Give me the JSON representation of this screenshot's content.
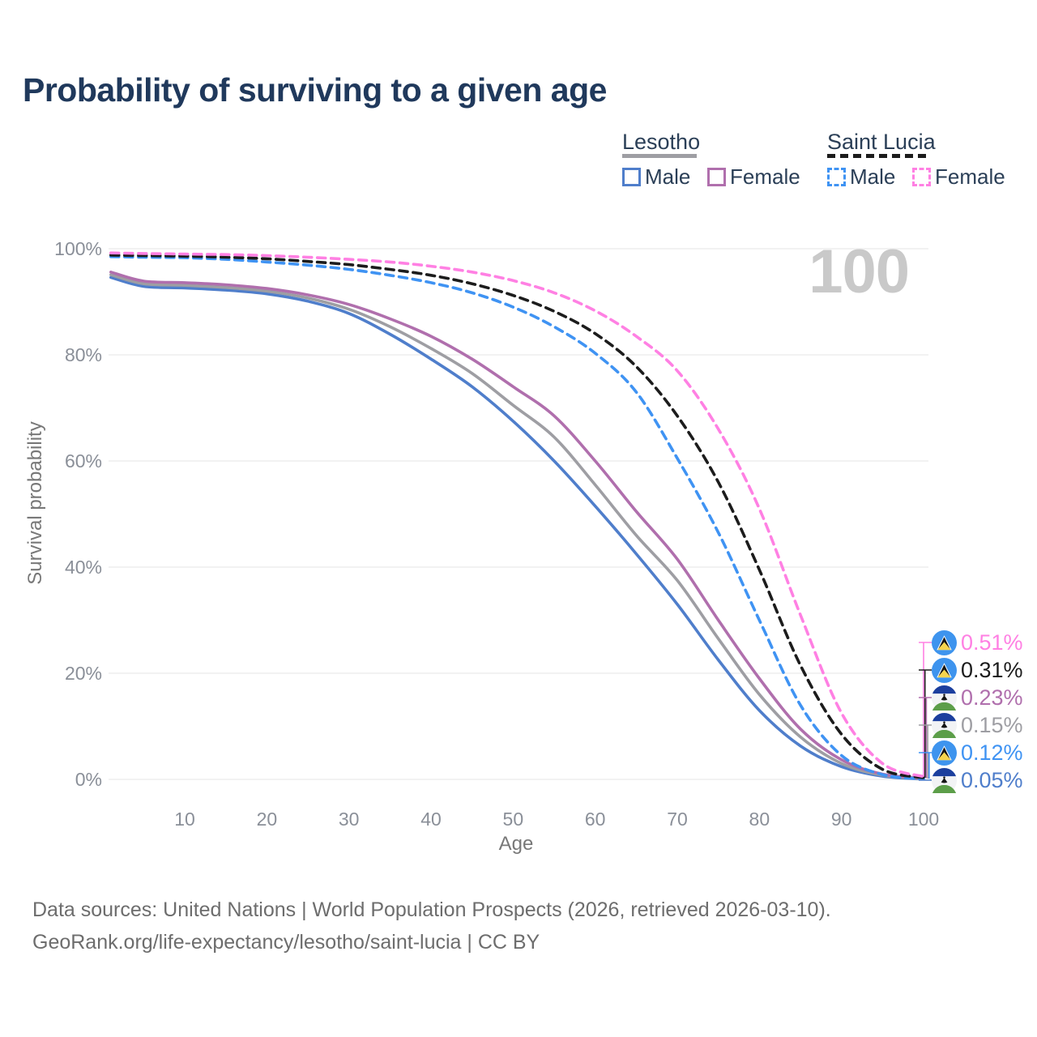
{
  "title": "Probability of surviving to a given age",
  "watermark": "100",
  "legend": {
    "groups": [
      {
        "label": "Lesotho",
        "line_style": "solid",
        "line_color": "#9e9ea3",
        "items": [
          {
            "label": "Male",
            "color": "#4f7ecb",
            "dashed": false
          },
          {
            "label": "Female",
            "color": "#b06fad",
            "dashed": false
          }
        ]
      },
      {
        "label": "Saint Lucia",
        "line_style": "dashed",
        "line_color": "#1c1c1c",
        "items": [
          {
            "label": "Male",
            "color": "#3f93f3",
            "dashed": true
          },
          {
            "label": "Female",
            "color": "#ff80e3",
            "dashed": true
          }
        ]
      }
    ]
  },
  "chart_data": {
    "type": "line",
    "title": "Probability of surviving to a given age",
    "xlabel": "Age",
    "ylabel": "Survival probability",
    "xlim": [
      1,
      100
    ],
    "ylim": [
      0,
      100
    ],
    "x_ticks": [
      10,
      20,
      30,
      40,
      50,
      60,
      70,
      80,
      90,
      100
    ],
    "y_ticks": [
      0,
      20,
      40,
      60,
      80,
      100
    ],
    "y_tick_suffix": "%",
    "grid": "horizontal",
    "gridline_color": "#e9e9e9",
    "legend_position": "top-right",
    "age_marker_value": "100",
    "x": [
      1,
      5,
      10,
      15,
      20,
      25,
      30,
      35,
      40,
      45,
      50,
      55,
      60,
      65,
      70,
      75,
      80,
      85,
      90,
      95,
      100
    ],
    "series": [
      {
        "name": "Lesotho Male",
        "country": "Lesotho",
        "sex": "Male",
        "color": "#4f7ecb",
        "dash": false,
        "end_label": "0.05%",
        "values": [
          94.6,
          92.9,
          92.6,
          92.2,
          91.5,
          90.1,
          87.8,
          83.9,
          79.2,
          74.0,
          67.5,
          60.0,
          51.5,
          42.5,
          33.0,
          22.5,
          13.0,
          6.3,
          2.4,
          0.6,
          0.05
        ]
      },
      {
        "name": "Lesotho Both sexes",
        "country": "Lesotho",
        "sex": "Both",
        "color": "#9e9ea3",
        "dash": false,
        "end_label": "0.15%",
        "values": [
          95.1,
          93.4,
          93.1,
          92.7,
          92.0,
          90.7,
          88.6,
          85.3,
          81.2,
          76.5,
          70.5,
          64.5,
          55.5,
          46.0,
          37.5,
          26.5,
          16.0,
          8.0,
          3.0,
          0.8,
          0.15
        ]
      },
      {
        "name": "Lesotho Female",
        "country": "Lesotho",
        "sex": "Female",
        "color": "#b06fad",
        "dash": false,
        "end_label": "0.23%",
        "values": [
          95.6,
          93.9,
          93.6,
          93.2,
          92.5,
          91.3,
          89.5,
          86.8,
          83.5,
          79.2,
          74.0,
          68.5,
          60.0,
          50.5,
          41.5,
          30.0,
          19.0,
          9.5,
          3.7,
          1.0,
          0.23
        ]
      },
      {
        "name": "Saint Lucia Male",
        "country": "Saint Lucia",
        "sex": "Male",
        "color": "#3f93f3",
        "dash": true,
        "end_label": "0.12%",
        "values": [
          98.5,
          98.4,
          98.3,
          98.0,
          97.5,
          96.9,
          96.1,
          95.0,
          93.6,
          91.7,
          89.0,
          85.3,
          80.3,
          73.0,
          60.5,
          46.5,
          30.0,
          14.0,
          4.5,
          0.9,
          0.12
        ]
      },
      {
        "name": "Saint Lucia Both sexes",
        "country": "Saint Lucia",
        "sex": "Both",
        "color": "#1c1c1c",
        "dash": true,
        "end_label": "0.31%",
        "values": [
          98.8,
          98.7,
          98.6,
          98.4,
          98.1,
          97.6,
          97.0,
          96.1,
          95.0,
          93.4,
          91.2,
          88.2,
          84.0,
          77.8,
          68.5,
          56.0,
          39.5,
          21.5,
          8.5,
          1.9,
          0.31
        ]
      },
      {
        "name": "Saint Lucia Female",
        "country": "Saint Lucia",
        "sex": "Female",
        "color": "#ff80e3",
        "dash": true,
        "end_label": "0.51%",
        "values": [
          99.2,
          99.1,
          99.0,
          98.9,
          98.7,
          98.4,
          98.0,
          97.5,
          96.7,
          95.6,
          94.0,
          91.7,
          88.3,
          83.5,
          77.0,
          66.0,
          51.0,
          31.0,
          12.5,
          3.0,
          0.51
        ]
      }
    ]
  },
  "end_labels": [
    {
      "text": "0.51%",
      "series": 5,
      "flag": "saint-lucia",
      "color": "#ff80e3"
    },
    {
      "text": "0.31%",
      "series": 4,
      "flag": "saint-lucia",
      "color": "#1c1c1c"
    },
    {
      "text": "0.23%",
      "series": 2,
      "flag": "lesotho",
      "color": "#b06fad"
    },
    {
      "text": "0.15%",
      "series": 1,
      "flag": "lesotho",
      "color": "#9e9ea3"
    },
    {
      "text": "0.12%",
      "series": 3,
      "flag": "saint-lucia",
      "color": "#3f93f3"
    },
    {
      "text": "0.05%",
      "series": 0,
      "flag": "lesotho",
      "color": "#4f7ecb"
    }
  ],
  "icons": {
    "saint-lucia-flag": {
      "field": "#3e94ee",
      "triangle_black": "#141414",
      "triangle_white": "#ffffff",
      "triangle_gold": "#f6d44d"
    },
    "lesotho-flag": {
      "top_band": "#1c3f9e",
      "mid_band": "#f2f3f5",
      "bottom_band": "#5c9e49",
      "hat": "#141414"
    }
  },
  "footer": {
    "line1": "Data sources: United Nations | World Population Prospects (2026, retrieved 2026-03-10).",
    "line2": "GeoRank.org/life-expectancy/lesotho/saint-lucia | CC BY"
  }
}
